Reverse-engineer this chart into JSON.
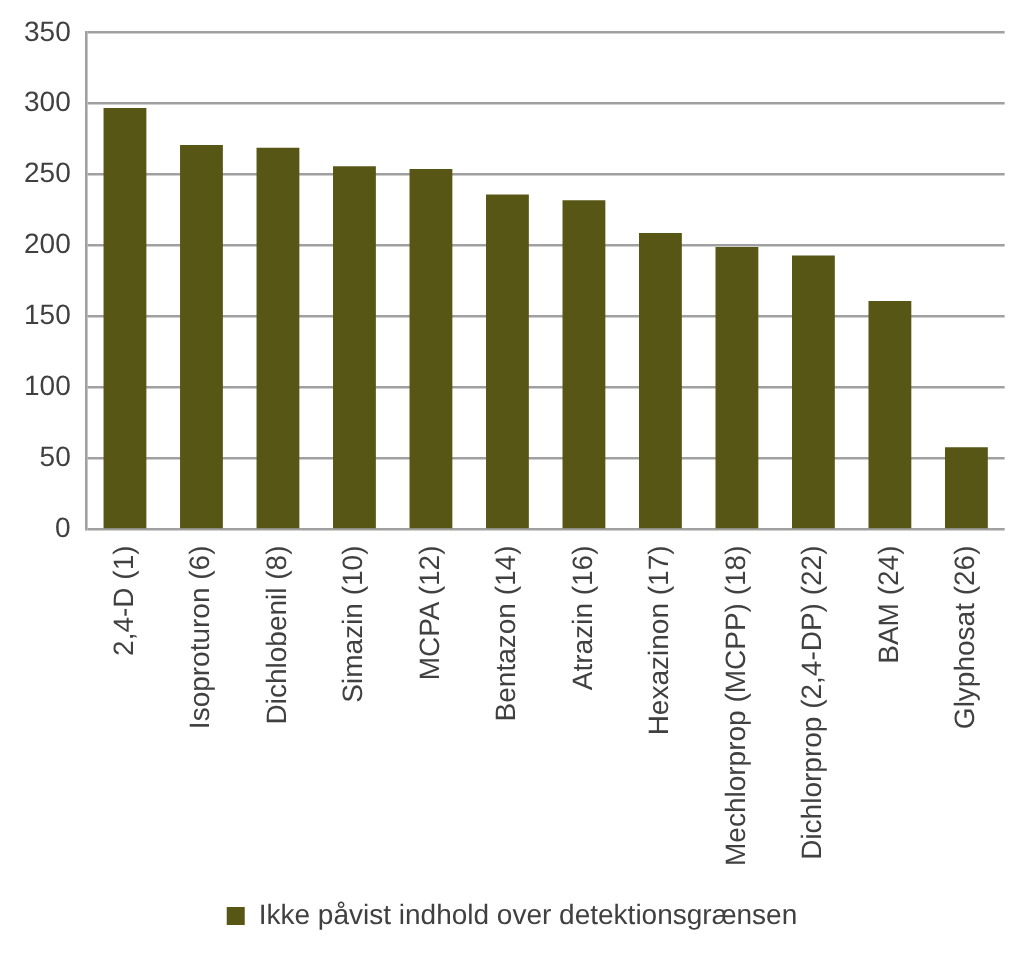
{
  "chart_data": {
    "type": "bar",
    "categories": [
      "2,4-D (1)",
      "Isoproturon (6)",
      "Dichlobenil (8)",
      "Simazin (10)",
      "MCPA (12)",
      "Bentazon (14)",
      "Atrazin (16)",
      "Hexazinon (17)",
      "Mechlorprop (MCPP) (18)",
      "Dichlorprop (2,4-DP) (22)",
      "BAM (24)",
      "Glyphosat (26)"
    ],
    "series": [
      {
        "name": "Ikke påvist indhold over detektionsgrænsen",
        "color": "#575614",
        "values": [
          297,
          271,
          269,
          256,
          254,
          236,
          232,
          209,
          199,
          193,
          161,
          58
        ]
      }
    ],
    "ylim": [
      0,
      350
    ],
    "yticks": [
      0,
      50,
      100,
      150,
      200,
      250,
      300,
      350
    ],
    "grid": "y",
    "legend": "bottom"
  }
}
